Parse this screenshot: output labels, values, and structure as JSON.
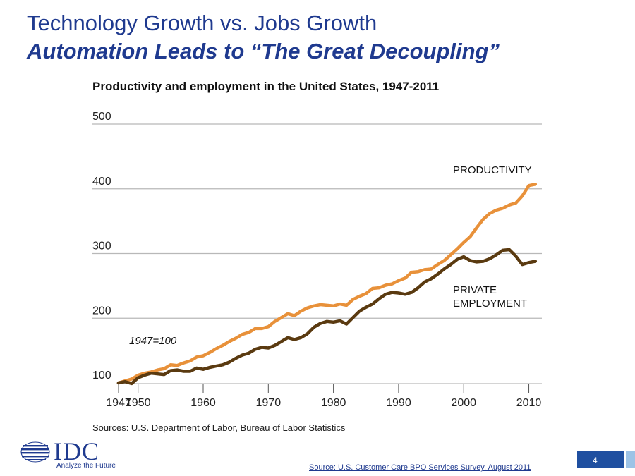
{
  "slide": {
    "title": "Technology Growth vs. Jobs Growth",
    "subtitle_bold": "Automation",
    "subtitle_rest": " Leads to “The Great Decoupling”",
    "page_number": "4",
    "footer_source": "Source: U.S. Customer Care BPO Services Survey, August 2011",
    "logo_text": "IDC",
    "logo_tagline": "Analyze the Future",
    "colors": {
      "title": "#1f3a8f",
      "page_box": "#1f4fa0",
      "page_strip": "#9dc3e6"
    }
  },
  "chart_data": {
    "type": "line",
    "title": "Productivity and employment in the United States, 1947-2011",
    "xlabel": "",
    "ylabel": "",
    "xlim": [
      1947,
      2012
    ],
    "ylim": [
      100,
      500
    ],
    "yticks": [
      100,
      200,
      300,
      400,
      500
    ],
    "xticks": [
      1947,
      1950,
      1960,
      1970,
      1980,
      1990,
      2000,
      2010
    ],
    "grid": true,
    "annotation": "1947=100",
    "source": "Sources: U.S. Department of Labor, Bureau of Labor Statistics",
    "x": [
      1947,
      1948,
      1949,
      1950,
      1951,
      1952,
      1953,
      1954,
      1955,
      1956,
      1957,
      1958,
      1959,
      1960,
      1961,
      1962,
      1963,
      1964,
      1965,
      1966,
      1967,
      1968,
      1969,
      1970,
      1971,
      1972,
      1973,
      1974,
      1975,
      1976,
      1977,
      1978,
      1979,
      1980,
      1981,
      1982,
      1983,
      1984,
      1985,
      1986,
      1987,
      1988,
      1989,
      1990,
      1991,
      1992,
      1993,
      1994,
      1995,
      1996,
      1997,
      1998,
      1999,
      2000,
      2001,
      2002,
      2003,
      2004,
      2005,
      2006,
      2007,
      2008,
      2009,
      2010,
      2011
    ],
    "series": [
      {
        "name": "PRODUCTIVITY",
        "color": "#e8913a",
        "values": [
          100,
          103,
          106,
          112,
          115,
          117,
          120,
          122,
          128,
          127,
          131,
          134,
          140,
          142,
          147,
          153,
          158,
          164,
          169,
          175,
          178,
          184,
          184,
          187,
          195,
          201,
          207,
          204,
          211,
          216,
          219,
          221,
          220,
          219,
          222,
          220,
          229,
          234,
          238,
          246,
          247,
          251,
          253,
          258,
          262,
          271,
          272,
          275,
          276,
          283,
          289,
          298,
          307,
          317,
          326,
          340,
          353,
          362,
          367,
          370,
          375,
          378,
          389,
          405,
          407
        ]
      },
      {
        "name": "PRIVATE EMPLOYMENT",
        "color": "#5a3a10",
        "values": [
          100,
          102,
          99,
          108,
          112,
          115,
          114,
          113,
          119,
          120,
          118,
          118,
          123,
          121,
          124,
          126,
          128,
          132,
          138,
          143,
          146,
          152,
          155,
          154,
          158,
          164,
          170,
          167,
          170,
          176,
          186,
          192,
          195,
          194,
          196,
          191,
          201,
          211,
          217,
          222,
          230,
          237,
          240,
          239,
          237,
          240,
          247,
          256,
          261,
          268,
          276,
          283,
          291,
          295,
          289,
          287,
          288,
          292,
          298,
          305,
          306,
          296,
          283,
          286,
          288
        ]
      }
    ]
  }
}
